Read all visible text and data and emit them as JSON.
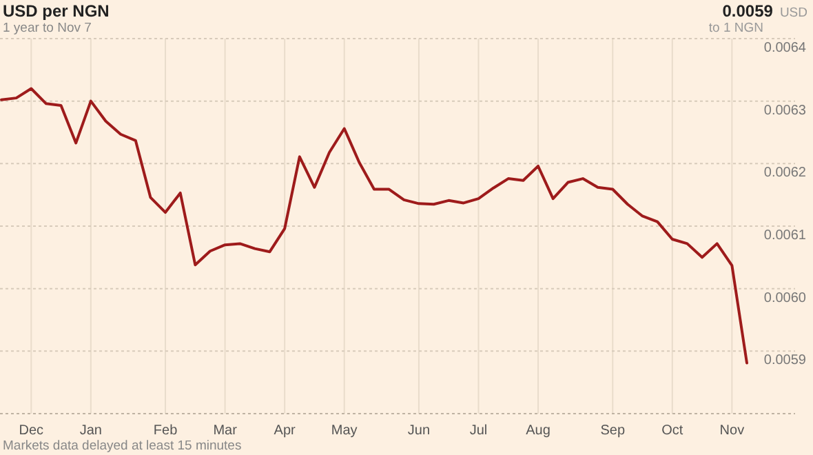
{
  "chart_data": {
    "type": "line",
    "title": "USD per NGN",
    "subtitle": "1 year to Nov 7",
    "annotations": [
      "0.0059",
      "USD",
      "to 1 NGN",
      "Markets data delayed at least 15 minutes"
    ],
    "categories": [
      null,
      null,
      "Dec",
      null,
      null,
      null,
      "Jan",
      null,
      null,
      null,
      null,
      "Feb",
      null,
      null,
      null,
      "Mar",
      null,
      null,
      null,
      "Apr",
      null,
      null,
      null,
      "May",
      null,
      null,
      null,
      null,
      "Jun",
      null,
      null,
      null,
      "Jul",
      null,
      null,
      null,
      "Aug",
      null,
      null,
      null,
      null,
      "Sep",
      null,
      null,
      null,
      "Oct",
      null,
      null,
      null,
      "Nov",
      null
    ],
    "series": [
      {
        "color": "#9e1b1b",
        "values": [
          0.006302,
          0.006305,
          0.00632,
          0.006296,
          0.006293,
          0.006233,
          0.0063,
          0.006268,
          0.006247,
          0.006237,
          0.006146,
          0.006122,
          0.006153,
          0.006038,
          0.00606,
          0.00607,
          0.006072,
          0.006064,
          0.006059,
          0.006096,
          0.006211,
          0.006162,
          0.006218,
          0.006256,
          0.006202,
          0.006159,
          0.006159,
          0.006142,
          0.006136,
          0.006135,
          0.006141,
          0.006137,
          0.006144,
          0.006161,
          0.006176,
          0.006173,
          0.006196,
          0.006144,
          0.00617,
          0.006176,
          0.006162,
          0.006159,
          0.006135,
          0.006116,
          0.006107,
          0.006079,
          0.006072,
          0.00605,
          0.006072,
          0.006037,
          0.005881
        ]
      }
    ],
    "ylim": [
      0.0058,
      0.0064
    ],
    "yticks": [
      0.0059,
      {
        "value": 0.006,
        "label": "0.0060"
      },
      0.0061,
      0.0062,
      0.0063,
      0.0064
    ],
    "grid": true,
    "marker": "none",
    "line_style": "solid"
  }
}
